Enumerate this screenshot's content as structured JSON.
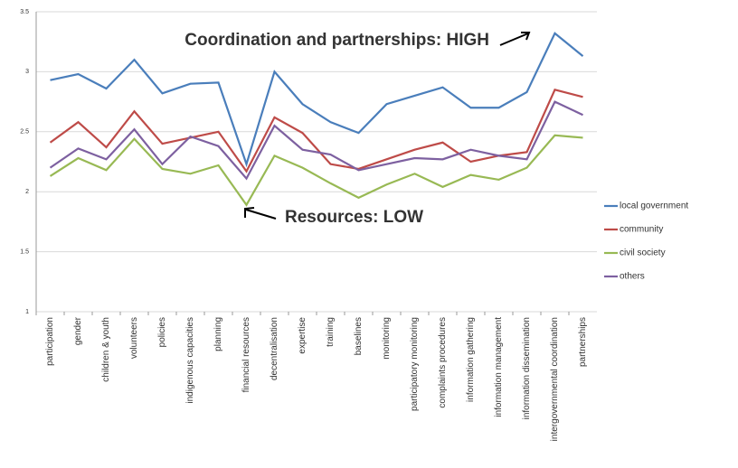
{
  "chart_data": {
    "type": "line",
    "categories": [
      "participation",
      "gender",
      "children & youth",
      "volunteers",
      "policies",
      "indigenous capacities",
      "planning",
      "financial resources",
      "decentralisation",
      "expertise",
      "training",
      "baselines",
      "monitoring",
      "participatory monitoring",
      "complaints procedures",
      "information gathering",
      "information management",
      "information dissemination",
      "intergovernmental coordination",
      "partnerships"
    ],
    "series": [
      {
        "name": "local government",
        "color": "#4a7ebb",
        "values": [
          2.93,
          2.98,
          2.86,
          3.1,
          2.82,
          2.9,
          2.91,
          2.23,
          3.0,
          2.73,
          2.58,
          2.49,
          2.73,
          2.8,
          2.87,
          2.7,
          2.7,
          2.83,
          3.32,
          3.13
        ]
      },
      {
        "name": "community",
        "color": "#be4b48",
        "values": [
          2.41,
          2.58,
          2.37,
          2.67,
          2.4,
          2.45,
          2.5,
          2.17,
          2.62,
          2.49,
          2.23,
          2.19,
          2.27,
          2.35,
          2.41,
          2.25,
          2.3,
          2.33,
          2.85,
          2.79
        ]
      },
      {
        "name": "civil society",
        "color": "#98b954",
        "values": [
          2.13,
          2.28,
          2.18,
          2.44,
          2.19,
          2.15,
          2.22,
          1.89,
          2.3,
          2.2,
          2.07,
          1.95,
          2.06,
          2.15,
          2.04,
          2.14,
          2.1,
          2.2,
          2.47,
          2.45
        ]
      },
      {
        "name": "others",
        "color": "#7d60a0",
        "values": [
          2.2,
          2.36,
          2.27,
          2.52,
          2.23,
          2.46,
          2.38,
          2.11,
          2.55,
          2.35,
          2.31,
          2.18,
          2.23,
          2.28,
          2.27,
          2.35,
          2.3,
          2.27,
          2.75,
          2.64
        ]
      }
    ],
    "ylim": [
      1,
      3.5
    ],
    "yticks": [
      1,
      1.5,
      2,
      2.5,
      3,
      3.5
    ],
    "grid": true,
    "legend": "right",
    "annotations": [
      "Coordination and partnerships: HIGH",
      "Resources: LOW"
    ],
    "annotation_color": "#e8891f"
  }
}
